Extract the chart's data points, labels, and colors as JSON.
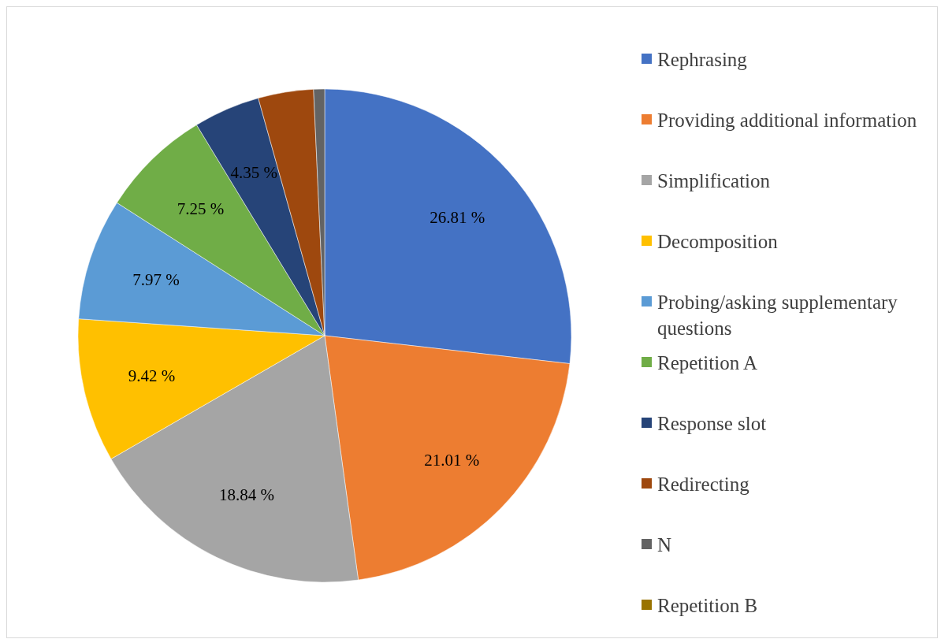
{
  "chart_data": {
    "type": "pie",
    "categories": [
      "Rephrasing",
      "Providing additional information",
      "Simplification",
      "Decomposition",
      "Probing/asking supplementary questions",
      "Repetition A",
      "Response slot",
      "Redirecting",
      "N",
      "Repetition B"
    ],
    "values": [
      26.81,
      21.01,
      18.84,
      9.42,
      7.97,
      7.25,
      4.35,
      3.62,
      0.72,
      0
    ],
    "colors": [
      "#4472c4",
      "#ed7d31",
      "#a5a5a5",
      "#ffc000",
      "#5b9bd5",
      "#70ad47",
      "#264478",
      "#9e480e",
      "#636363",
      "#997300"
    ],
    "value_labels": [
      "26.81 %",
      "21.01 %",
      "18.84 %",
      "9.42 %",
      "7.97 %",
      "7.25 %",
      "4.35 %",
      null,
      null,
      null
    ],
    "legend": "right"
  }
}
